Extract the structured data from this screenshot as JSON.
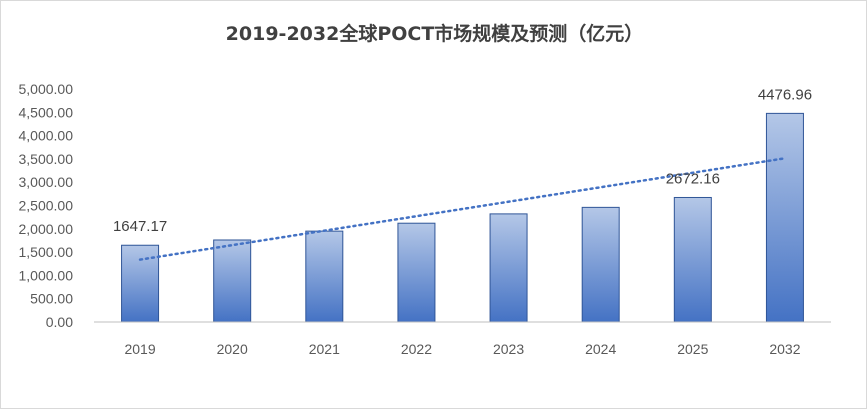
{
  "chart_data": {
    "type": "bar",
    "title": "2019-2032全球POCT市场规模及预测（亿元）",
    "xlabel": "",
    "ylabel": "",
    "categories": [
      "2019",
      "2020",
      "2021",
      "2022",
      "2023",
      "2024",
      "2025",
      "2032"
    ],
    "series": [
      {
        "values": [
          1647.17,
          1760,
          1950,
          2120,
          2320,
          2460,
          2672.16,
          4476.96
        ],
        "data_labels": [
          "1647.17",
          "",
          "",
          "",
          "",
          "",
          "2672.16",
          "4476.96"
        ]
      }
    ],
    "ylim": [
      0,
      5000
    ],
    "yticks": [
      "0.00",
      "500.00",
      "1,000.00",
      "1,500.00",
      "2,000.00",
      "2,500.00",
      "3,000.00",
      "3,500.00",
      "4,000.00",
      "4,500.00",
      "5,000.00"
    ],
    "trendline": {
      "type": "linear",
      "style": "dotted",
      "color": "#4472C4"
    },
    "grid": false,
    "legend": "none",
    "colors": {
      "bar_top": "#B4C7E7",
      "bar_bottom": "#4472C4",
      "bar_edge": "#2F5597",
      "axis": "#BFBFBF"
    }
  }
}
